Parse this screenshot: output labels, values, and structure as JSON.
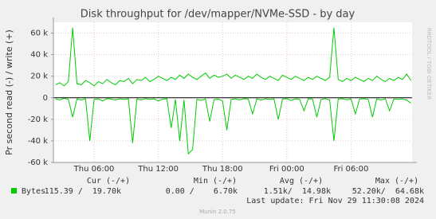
{
  "chart_data": {
    "type": "line",
    "title": "Disk throughput for /dev/mapper/NVMe-SSD - by day",
    "y_label": "Pr second read (-) / write (+)",
    "side_label": "RRDTOOL / TOBI OETIKER",
    "x": [
      2.4,
      2.8,
      3.2,
      3.6,
      4.0,
      4.4,
      4.8,
      5.2,
      5.6,
      6.0,
      6.4,
      6.8,
      7.2,
      7.6,
      8.0,
      8.4,
      8.8,
      9.2,
      9.6,
      10.0,
      10.4,
      10.8,
      11.2,
      11.6,
      12.0,
      12.4,
      12.8,
      13.2,
      13.6,
      14.0,
      14.4,
      14.8,
      15.2,
      15.6,
      16.0,
      16.4,
      16.8,
      17.2,
      17.6,
      18.0,
      18.4,
      18.8,
      19.2,
      19.6,
      20.0,
      20.4,
      20.8,
      21.2,
      21.6,
      22.0,
      22.4,
      22.8,
      23.2,
      23.6,
      24.0,
      24.4,
      24.8,
      25.2,
      25.6,
      26.0,
      26.4,
      26.8,
      27.2,
      27.6,
      28.0,
      28.4,
      28.8,
      29.2,
      29.6,
      30.0,
      30.4,
      30.8,
      31.2,
      31.6,
      32.0,
      32.4,
      32.8,
      33.2,
      33.6,
      34.0,
      34.4,
      34.8,
      35.2,
      35.6
    ],
    "xlim": [
      2.2,
      35.7
    ],
    "xticks": [
      {
        "value": 6,
        "label": "Thu 06:00"
      },
      {
        "value": 12,
        "label": "Thu 12:00"
      },
      {
        "value": 18,
        "label": "Thu 18:00"
      },
      {
        "value": 24,
        "label": "Fri 00:00"
      },
      {
        "value": 30,
        "label": "Fri 06:00"
      }
    ],
    "ylim": [
      -60000,
      70000
    ],
    "yticks": [
      {
        "value": -60000,
        "label": "-60 k"
      },
      {
        "value": -40000,
        "label": "-40 k"
      },
      {
        "value": -20000,
        "label": "-20 k"
      },
      0,
      {
        "value": 20000,
        "label": "20 k"
      },
      {
        "value": 40000,
        "label": "40 k"
      },
      {
        "value": 60000,
        "label": "60 k"
      }
    ],
    "grid": true,
    "series": [
      {
        "name": "Bytes",
        "color": "#00cc00",
        "values": [
          12000,
          14000,
          11000,
          15000,
          65000,
          13000,
          12000,
          16000,
          14000,
          11000,
          15000,
          13000,
          17000,
          14000,
          12000,
          16000,
          15000,
          18000,
          13000,
          17000,
          16000,
          19000,
          15000,
          17000,
          20000,
          18000,
          16000,
          19000,
          17000,
          21000,
          18000,
          22000,
          19000,
          17000,
          20000,
          23000,
          18000,
          21000,
          19000,
          20000,
          22000,
          18000,
          21000,
          19000,
          17000,
          20000,
          18000,
          22000,
          19000,
          17000,
          20000,
          18000,
          16000,
          21000,
          19000,
          17000,
          20000,
          18000,
          16000,
          19000,
          17000,
          20000,
          18000,
          16000,
          19000,
          65000,
          17000,
          15000,
          18000,
          16000,
          19000,
          17000,
          15000,
          18000,
          16000,
          20000,
          17000,
          15000,
          18000,
          16000,
          19000,
          17000,
          22000,
          16000
        ]
      },
      {
        "color": "#00cc00",
        "values": [
          -1000,
          -2000,
          -500,
          -1500,
          -18000,
          -1000,
          -2000,
          -800,
          -40000,
          -1500,
          -1000,
          -3000,
          -800,
          -1200,
          -2000,
          -1000,
          -1500,
          -900,
          -42000,
          -1100,
          -2000,
          -800,
          -1500,
          -1000,
          -3000,
          -1200,
          -900,
          -28000,
          -1500,
          -40000,
          -2000,
          -52000,
          -48000,
          -1500,
          -2500,
          -1000,
          -22000,
          -1800,
          -1200,
          -3000,
          -30000,
          -1500,
          -1000,
          -2000,
          -800,
          -1200,
          -15000,
          -1000,
          -2200,
          -900,
          -1500,
          -1000,
          -20000,
          -1200,
          -800,
          -2500,
          -1000,
          -1500,
          -12000,
          -900,
          -1100,
          -18000,
          -1500,
          -800,
          -2000,
          -40000,
          -1200,
          -900,
          -1800,
          -1000,
          -15000,
          -1200,
          -800,
          -1500,
          -18000,
          -1000,
          -2000,
          -900,
          -12000,
          -1100,
          -1500,
          -1000,
          -2200,
          -5000
        ]
      }
    ],
    "legend_table": {
      "headers": [
        "Cur (-/+)",
        "Min (-/+)",
        "Avg (-/+)",
        "Max (-/+)"
      ],
      "values": [
        "115.39 /  19.70k",
        "0.00 /    6.70k",
        "1.51k/  14.98k",
        "52.20k/  64.68k"
      ]
    },
    "last_update": "Last update: Fri Nov 29 11:30:08 2024",
    "footer": "Munin 2.0.75"
  }
}
